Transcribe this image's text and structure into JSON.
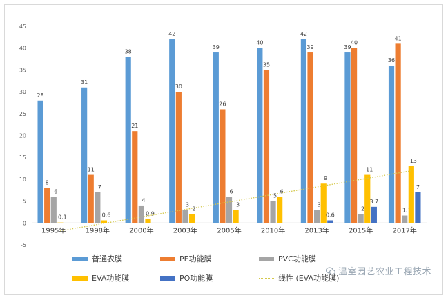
{
  "chart_data": {
    "type": "bar",
    "title": "",
    "xlabel": "",
    "ylabel": "",
    "ylim": [
      -5,
      45
    ],
    "yticks": [
      -5,
      0,
      5,
      10,
      15,
      20,
      25,
      30,
      35,
      40,
      45
    ],
    "categories": [
      "1995年",
      "1998年",
      "2000年",
      "2003年",
      "2005年",
      "2010年",
      "2013年",
      "2015年",
      "2017年"
    ],
    "series": [
      {
        "name": "普通农膜",
        "color": "#5b9bd5",
        "values": [
          28,
          31,
          38,
          42,
          39,
          40,
          42,
          39,
          36
        ],
        "labels": [
          "28",
          "31",
          "38",
          "42",
          "39",
          "40",
          "42",
          "39",
          "36"
        ]
      },
      {
        "name": "PE功能膜",
        "color": "#ed7d31",
        "values": [
          8,
          11,
          21,
          30,
          26,
          35,
          39,
          40,
          41
        ],
        "labels": [
          "8",
          "11",
          "21",
          "30",
          "26",
          "35",
          "39",
          "40",
          "41"
        ]
      },
      {
        "name": "PVC功能膜",
        "color": "#a5a5a5",
        "values": [
          6,
          7,
          4,
          3,
          6,
          5,
          3,
          2,
          1.7
        ],
        "labels": [
          "6",
          "7",
          "4",
          "3",
          "6",
          "5",
          "3",
          "2",
          "1.7"
        ]
      },
      {
        "name": "EVA功能膜",
        "color": "#ffc000",
        "values": [
          0.1,
          0.6,
          0.9,
          2,
          3,
          6,
          9,
          11,
          13
        ],
        "labels": [
          "0.1",
          "0.6",
          "0.9",
          "2",
          "3",
          "6",
          "9",
          "11",
          "13"
        ]
      },
      {
        "name": "PO功能膜",
        "color": "#4472c4",
        "values": [
          null,
          null,
          null,
          null,
          null,
          null,
          0.6,
          3.7,
          7
        ],
        "labels": [
          null,
          null,
          null,
          null,
          null,
          null,
          "0.6",
          "3.7",
          "7"
        ]
      }
    ],
    "trendline": {
      "name": "线性 (EVA功能膜)",
      "series": "EVA功能膜",
      "color": "#d4c84a"
    },
    "legend_position": "bottom",
    "grid": false
  },
  "watermark": {
    "text": "温室园艺农业工程技术",
    "icon": "wechat-icon"
  }
}
